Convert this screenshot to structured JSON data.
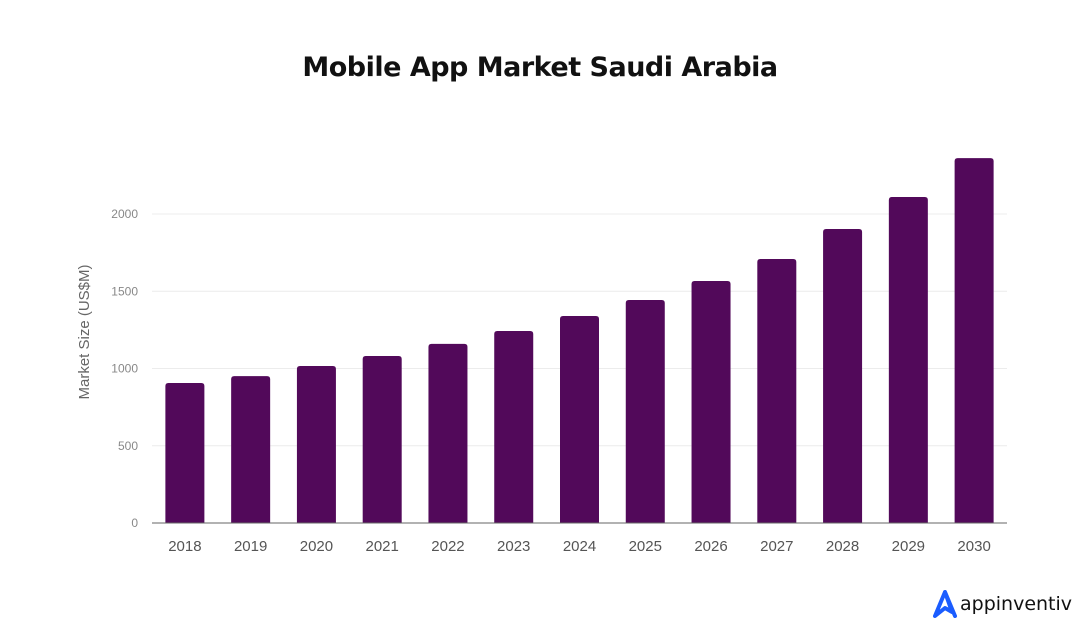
{
  "chart_data": {
    "type": "bar",
    "title": "Mobile App Market Saudi Arabia",
    "xlabel": "",
    "ylabel": "Market Size (US$M)",
    "categories": [
      "2018",
      "2019",
      "2020",
      "2021",
      "2022",
      "2023",
      "2024",
      "2025",
      "2026",
      "2027",
      "2028",
      "2029",
      "2030"
    ],
    "values": [
      906,
      951,
      1016,
      1081,
      1159,
      1243,
      1340,
      1443,
      1566,
      1709,
      1903,
      2110,
      2362
    ],
    "ylim": [
      0,
      2450
    ],
    "yticks": [
      0,
      500,
      1000,
      1500,
      2000
    ],
    "grid": true,
    "bar_color": "#52095a"
  },
  "brand": {
    "name": "appinventiv",
    "color": "#1a5cff"
  }
}
